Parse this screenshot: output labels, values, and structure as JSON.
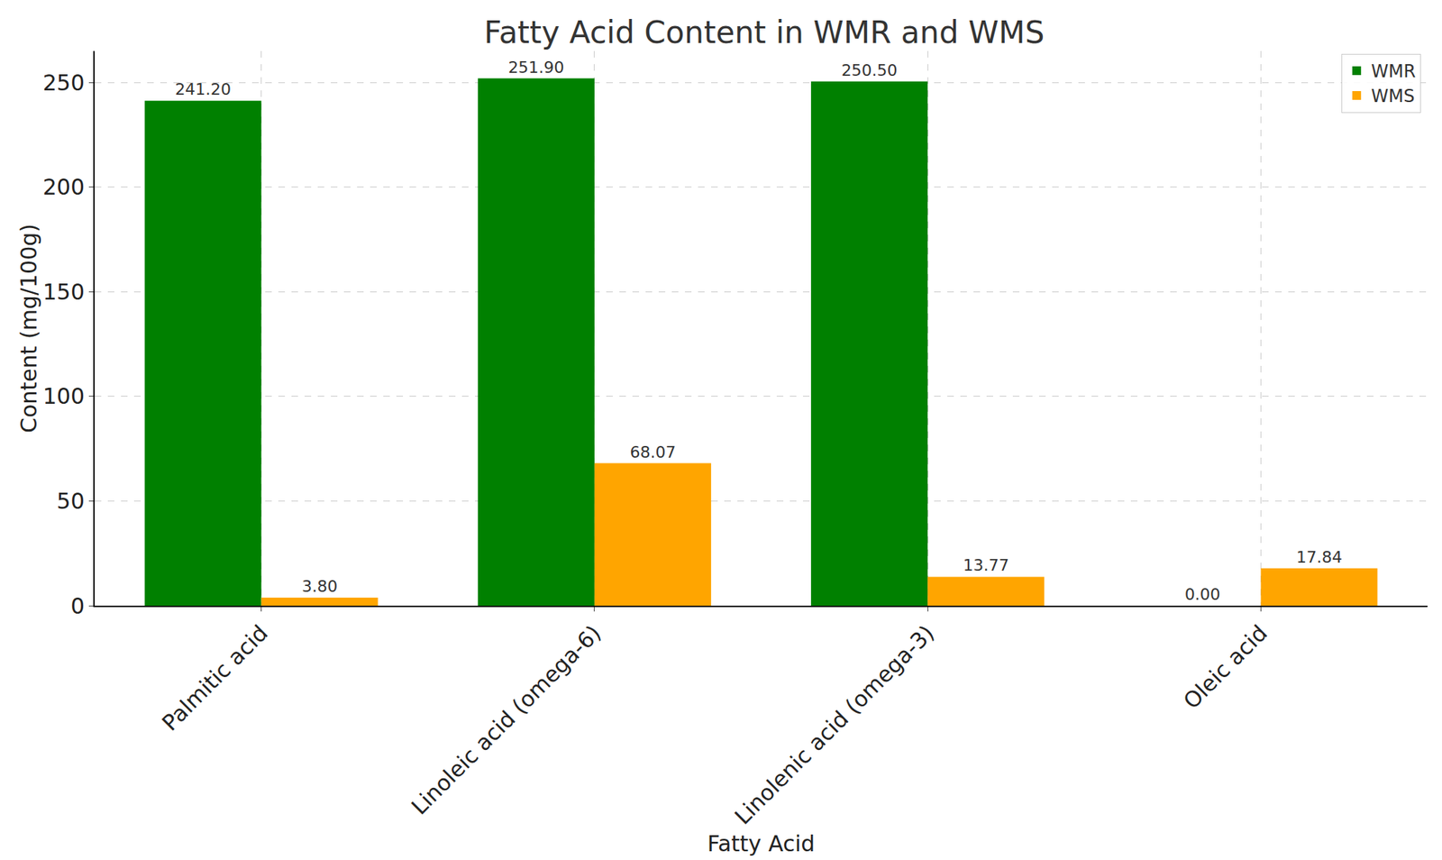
{
  "chart_data": {
    "type": "bar",
    "title": "Fatty Acid Content in WMR and WMS",
    "x_label": "Fatty Acid",
    "y_label": "Content (mg/100g)",
    "categories": [
      "Palmitic acid",
      "Linoleic acid (omega-6)",
      "Linolenic acid (omega-3)",
      "Oleic acid"
    ],
    "series": [
      {
        "name": "WMR",
        "color": "#008000",
        "values": [
          241.2,
          251.9,
          250.5,
          0
        ],
        "value_labels": [
          "241.20",
          "251.90",
          "250.50",
          "0.00"
        ]
      },
      {
        "name": "WMS",
        "color": "#ffa500",
        "values": [
          3.8,
          68.07,
          13.77,
          17.84
        ],
        "value_labels": [
          "3.80",
          "68.07",
          "13.77",
          "17.84"
        ]
      }
    ],
    "ylim": [
      0,
      265
    ],
    "yticks": [
      0,
      50,
      100,
      150,
      200,
      250
    ],
    "grid": true,
    "legend": "upper right",
    "data_labels": true
  }
}
